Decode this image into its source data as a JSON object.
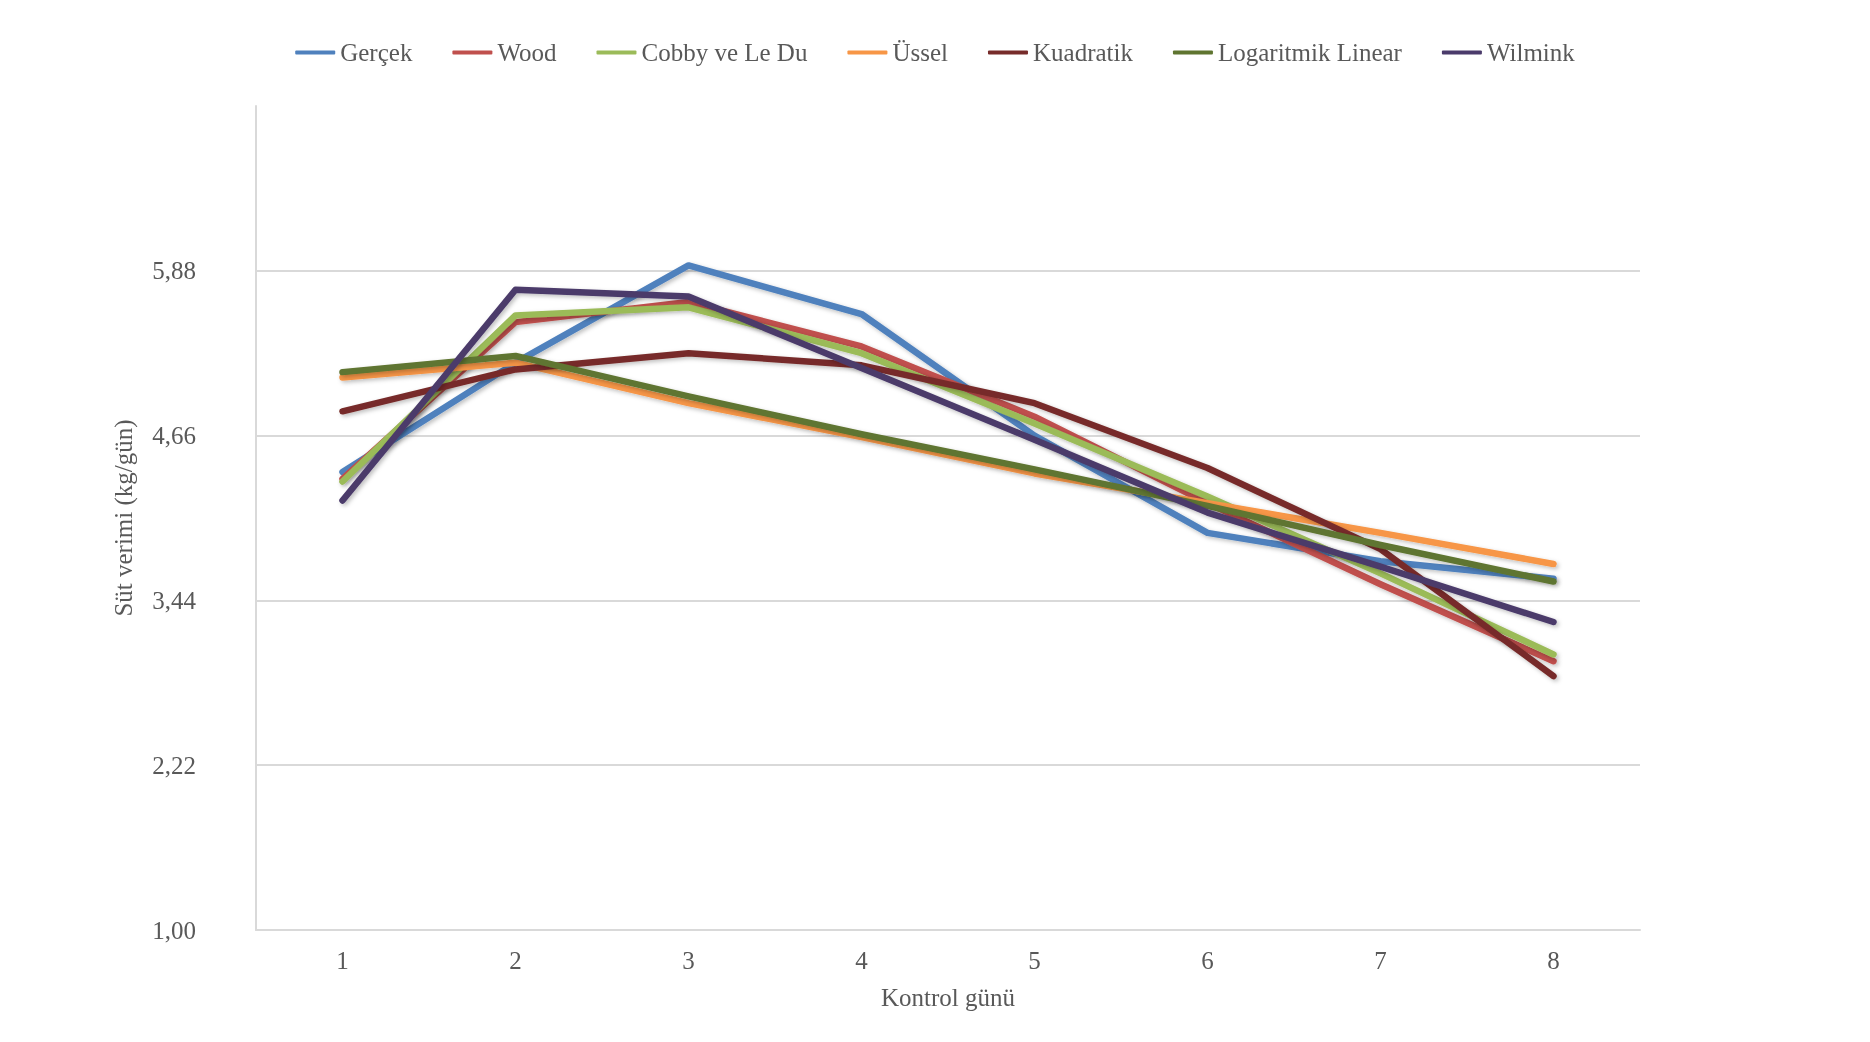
{
  "chart_data": {
    "type": "line",
    "xlabel": "Kontrol günü",
    "ylabel": "Süt verimi (kg/gün)",
    "categories": [
      "1",
      "2",
      "3",
      "4",
      "5",
      "6",
      "7",
      "8"
    ],
    "series": [
      {
        "name": "Gerçek",
        "color": "#4f81bd",
        "values": [
          4.39,
          5.2,
          5.92,
          5.56,
          4.66,
          3.94,
          3.73,
          3.6
        ]
      },
      {
        "name": "Wood",
        "color": "#c0504d",
        "values": [
          4.34,
          5.5,
          5.65,
          5.32,
          4.8,
          4.16,
          3.56,
          2.99
        ]
      },
      {
        "name": "Cobby ve Le Du",
        "color": "#9bbb59",
        "values": [
          4.32,
          5.55,
          5.61,
          5.27,
          4.75,
          4.21,
          3.64,
          3.04
        ]
      },
      {
        "name": "Üssel",
        "color": "#f79646",
        "values": [
          5.09,
          5.2,
          4.9,
          4.65,
          4.38,
          4.16,
          3.94,
          3.71
        ]
      },
      {
        "name": "Kuadratik",
        "color": "#772c2a",
        "values": [
          4.84,
          5.15,
          5.27,
          5.18,
          4.9,
          4.42,
          3.82,
          2.88
        ]
      },
      {
        "name": "Logaritmik Linear",
        "color": "#5f7530",
        "values": [
          5.13,
          5.25,
          4.95,
          4.67,
          4.41,
          4.14,
          3.85,
          3.58
        ]
      },
      {
        "name": "Wilmink",
        "color": "#4b3b6b",
        "values": [
          4.18,
          5.74,
          5.69,
          5.16,
          4.63,
          4.09,
          3.69,
          3.28
        ]
      }
    ],
    "ylim": [
      1,
      7.1
    ],
    "yticks": [
      {
        "value": 1,
        "label": "1,00"
      },
      {
        "value": 2.22,
        "label": "2,22"
      },
      {
        "value": 3.44,
        "label": "3,44"
      },
      {
        "value": 4.66,
        "label": "4,66"
      },
      {
        "value": 5.88,
        "label": "5,88"
      }
    ],
    "grid": "y",
    "legend": "top",
    "marker": "none",
    "line_style": "solid"
  }
}
